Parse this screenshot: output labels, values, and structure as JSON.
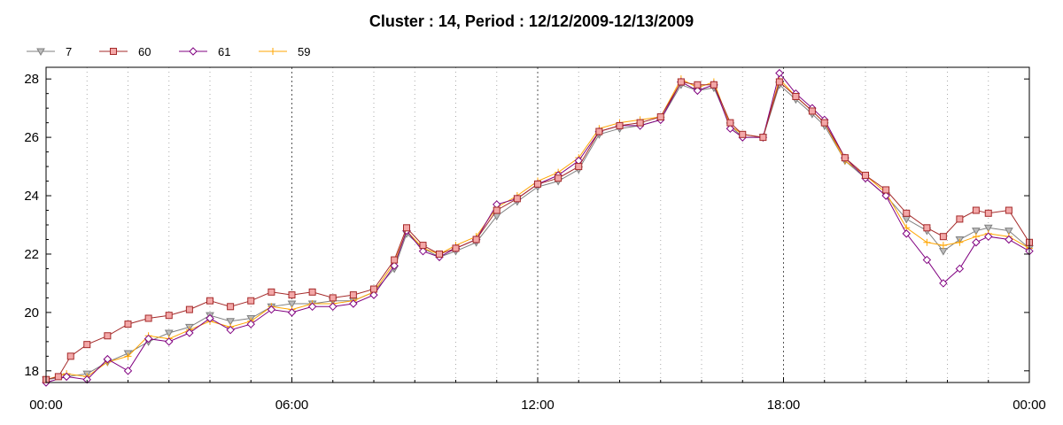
{
  "chart_data": {
    "type": "line",
    "title": "Cluster : 14, Period : 12/12/2009-12/13/2009",
    "xlabel": "",
    "ylabel": "",
    "xlim": [
      0,
      24
    ],
    "ylim": [
      17.6,
      28.4
    ],
    "x_ticks": [
      {
        "value": 0,
        "label": "00:00"
      },
      {
        "value": 6,
        "label": "06:00"
      },
      {
        "value": 12,
        "label": "12:00"
      },
      {
        "value": 18,
        "label": "18:00"
      },
      {
        "value": 24,
        "label": "00:00"
      }
    ],
    "y_ticks": [
      18,
      20,
      22,
      24,
      26,
      28
    ],
    "grid": "dotted",
    "legend_position": "top-left",
    "series": [
      {
        "name": "7",
        "color": "#7f7f7f",
        "marker": "triangle-down",
        "points": [
          [
            0,
            17.7
          ],
          [
            0.5,
            17.8
          ],
          [
            1,
            17.9
          ],
          [
            1.5,
            18.3
          ],
          [
            2,
            18.6
          ],
          [
            2.5,
            19.0
          ],
          [
            3,
            19.3
          ],
          [
            3.5,
            19.5
          ],
          [
            4,
            19.9
          ],
          [
            4.5,
            19.7
          ],
          [
            5,
            19.8
          ],
          [
            5.5,
            20.2
          ],
          [
            6,
            20.3
          ],
          [
            6.5,
            20.3
          ],
          [
            7,
            20.4
          ],
          [
            7.5,
            20.4
          ],
          [
            8,
            20.7
          ],
          [
            8.5,
            21.5
          ],
          [
            8.8,
            22.7
          ],
          [
            9.2,
            22.2
          ],
          [
            9.6,
            21.9
          ],
          [
            10,
            22.1
          ],
          [
            10.5,
            22.4
          ],
          [
            11,
            23.3
          ],
          [
            11.5,
            23.8
          ],
          [
            12,
            24.3
          ],
          [
            12.5,
            24.5
          ],
          [
            13,
            24.9
          ],
          [
            13.5,
            26.1
          ],
          [
            14,
            26.3
          ],
          [
            14.5,
            26.4
          ],
          [
            15,
            26.6
          ],
          [
            15.5,
            27.8
          ],
          [
            15.9,
            27.6
          ],
          [
            16.3,
            27.7
          ],
          [
            16.7,
            26.4
          ],
          [
            17,
            26.0
          ],
          [
            17.5,
            26.0
          ],
          [
            17.9,
            27.8
          ],
          [
            18.3,
            27.3
          ],
          [
            18.7,
            26.8
          ],
          [
            19,
            26.4
          ],
          [
            19.5,
            25.2
          ],
          [
            20,
            24.6
          ],
          [
            20.5,
            24.0
          ],
          [
            21,
            23.2
          ],
          [
            21.5,
            22.8
          ],
          [
            21.9,
            22.1
          ],
          [
            22.3,
            22.5
          ],
          [
            22.7,
            22.8
          ],
          [
            23,
            22.9
          ],
          [
            23.5,
            22.8
          ],
          [
            24,
            22.2
          ]
        ]
      },
      {
        "name": "60",
        "color": "#a52a2a",
        "fill": "#f3a8a8",
        "marker": "square",
        "points": [
          [
            0,
            17.7
          ],
          [
            0.3,
            17.8
          ],
          [
            0.6,
            18.5
          ],
          [
            1,
            18.9
          ],
          [
            1.5,
            19.2
          ],
          [
            2,
            19.6
          ],
          [
            2.5,
            19.8
          ],
          [
            3,
            19.9
          ],
          [
            3.5,
            20.1
          ],
          [
            4,
            20.4
          ],
          [
            4.5,
            20.2
          ],
          [
            5,
            20.4
          ],
          [
            5.5,
            20.7
          ],
          [
            6,
            20.6
          ],
          [
            6.5,
            20.7
          ],
          [
            7,
            20.5
          ],
          [
            7.5,
            20.6
          ],
          [
            8,
            20.8
          ],
          [
            8.5,
            21.8
          ],
          [
            8.8,
            22.9
          ],
          [
            9.2,
            22.3
          ],
          [
            9.6,
            22.0
          ],
          [
            10,
            22.2
          ],
          [
            10.5,
            22.5
          ],
          [
            11,
            23.5
          ],
          [
            11.5,
            23.9
          ],
          [
            12,
            24.4
          ],
          [
            12.5,
            24.6
          ],
          [
            13,
            25.0
          ],
          [
            13.5,
            26.2
          ],
          [
            14,
            26.4
          ],
          [
            14.5,
            26.5
          ],
          [
            15,
            26.7
          ],
          [
            15.5,
            27.9
          ],
          [
            15.9,
            27.8
          ],
          [
            16.3,
            27.8
          ],
          [
            16.7,
            26.5
          ],
          [
            17,
            26.1
          ],
          [
            17.5,
            26.0
          ],
          [
            17.9,
            27.9
          ],
          [
            18.3,
            27.4
          ],
          [
            18.7,
            26.9
          ],
          [
            19,
            26.5
          ],
          [
            19.5,
            25.3
          ],
          [
            20,
            24.7
          ],
          [
            20.5,
            24.2
          ],
          [
            21,
            23.4
          ],
          [
            21.5,
            22.9
          ],
          [
            21.9,
            22.6
          ],
          [
            22.3,
            23.2
          ],
          [
            22.7,
            23.5
          ],
          [
            23,
            23.4
          ],
          [
            23.5,
            23.5
          ],
          [
            24,
            22.4
          ]
        ]
      },
      {
        "name": "61",
        "color": "#800080",
        "fill": "#ffffff",
        "marker": "diamond",
        "points": [
          [
            0,
            17.6
          ],
          [
            0.5,
            17.8
          ],
          [
            1,
            17.7
          ],
          [
            1.5,
            18.4
          ],
          [
            2,
            18.0
          ],
          [
            2.5,
            19.1
          ],
          [
            3,
            19.0
          ],
          [
            3.5,
            19.3
          ],
          [
            4,
            19.8
          ],
          [
            4.5,
            19.4
          ],
          [
            5,
            19.6
          ],
          [
            5.5,
            20.1
          ],
          [
            6,
            20.0
          ],
          [
            6.5,
            20.2
          ],
          [
            7,
            20.2
          ],
          [
            7.5,
            20.3
          ],
          [
            8,
            20.6
          ],
          [
            8.5,
            21.6
          ],
          [
            8.8,
            22.8
          ],
          [
            9.2,
            22.1
          ],
          [
            9.6,
            21.9
          ],
          [
            10,
            22.2
          ],
          [
            10.5,
            22.5
          ],
          [
            11,
            23.7
          ],
          [
            11.5,
            23.9
          ],
          [
            12,
            24.4
          ],
          [
            12.5,
            24.7
          ],
          [
            13,
            25.2
          ],
          [
            13.5,
            26.2
          ],
          [
            14,
            26.4
          ],
          [
            14.5,
            26.4
          ],
          [
            15,
            26.6
          ],
          [
            15.5,
            27.9
          ],
          [
            15.9,
            27.6
          ],
          [
            16.3,
            27.8
          ],
          [
            16.7,
            26.3
          ],
          [
            17,
            26.0
          ],
          [
            17.5,
            26.0
          ],
          [
            17.9,
            28.2
          ],
          [
            18.3,
            27.5
          ],
          [
            18.7,
            27.0
          ],
          [
            19,
            26.6
          ],
          [
            19.5,
            25.3
          ],
          [
            20,
            24.6
          ],
          [
            20.5,
            24.0
          ],
          [
            21,
            22.7
          ],
          [
            21.5,
            21.8
          ],
          [
            21.9,
            21.0
          ],
          [
            22.3,
            21.5
          ],
          [
            22.7,
            22.4
          ],
          [
            23,
            22.6
          ],
          [
            23.5,
            22.5
          ],
          [
            24,
            22.1
          ]
        ]
      },
      {
        "name": "59",
        "color": "#ffa500",
        "marker": "plus",
        "points": [
          [
            0,
            17.7
          ],
          [
            0.5,
            17.9
          ],
          [
            1,
            17.8
          ],
          [
            1.5,
            18.3
          ],
          [
            2,
            18.5
          ],
          [
            2.5,
            19.2
          ],
          [
            3,
            19.1
          ],
          [
            3.5,
            19.4
          ],
          [
            4,
            19.7
          ],
          [
            4.5,
            19.5
          ],
          [
            5,
            19.7
          ],
          [
            5.5,
            20.2
          ],
          [
            6,
            20.1
          ],
          [
            6.5,
            20.3
          ],
          [
            7,
            20.3
          ],
          [
            7.5,
            20.4
          ],
          [
            8,
            20.7
          ],
          [
            8.5,
            21.7
          ],
          [
            8.8,
            22.8
          ],
          [
            9.2,
            22.2
          ],
          [
            9.6,
            22.0
          ],
          [
            10,
            22.3
          ],
          [
            10.5,
            22.6
          ],
          [
            11,
            23.6
          ],
          [
            11.5,
            24.0
          ],
          [
            12,
            24.5
          ],
          [
            12.5,
            24.8
          ],
          [
            13,
            25.3
          ],
          [
            13.5,
            26.3
          ],
          [
            14,
            26.5
          ],
          [
            14.5,
            26.6
          ],
          [
            15,
            26.7
          ],
          [
            15.5,
            28.0
          ],
          [
            15.9,
            27.7
          ],
          [
            16.3,
            27.9
          ],
          [
            16.7,
            26.4
          ],
          [
            17,
            26.1
          ],
          [
            17.5,
            26.0
          ],
          [
            17.9,
            28.0
          ],
          [
            18.3,
            27.4
          ],
          [
            18.7,
            26.9
          ],
          [
            19,
            26.5
          ],
          [
            19.5,
            25.2
          ],
          [
            20,
            24.7
          ],
          [
            20.5,
            24.1
          ],
          [
            21,
            22.9
          ],
          [
            21.5,
            22.4
          ],
          [
            21.9,
            22.3
          ],
          [
            22.3,
            22.4
          ],
          [
            22.7,
            22.6
          ],
          [
            23,
            22.7
          ],
          [
            23.5,
            22.6
          ],
          [
            24,
            22.2
          ]
        ]
      }
    ]
  }
}
